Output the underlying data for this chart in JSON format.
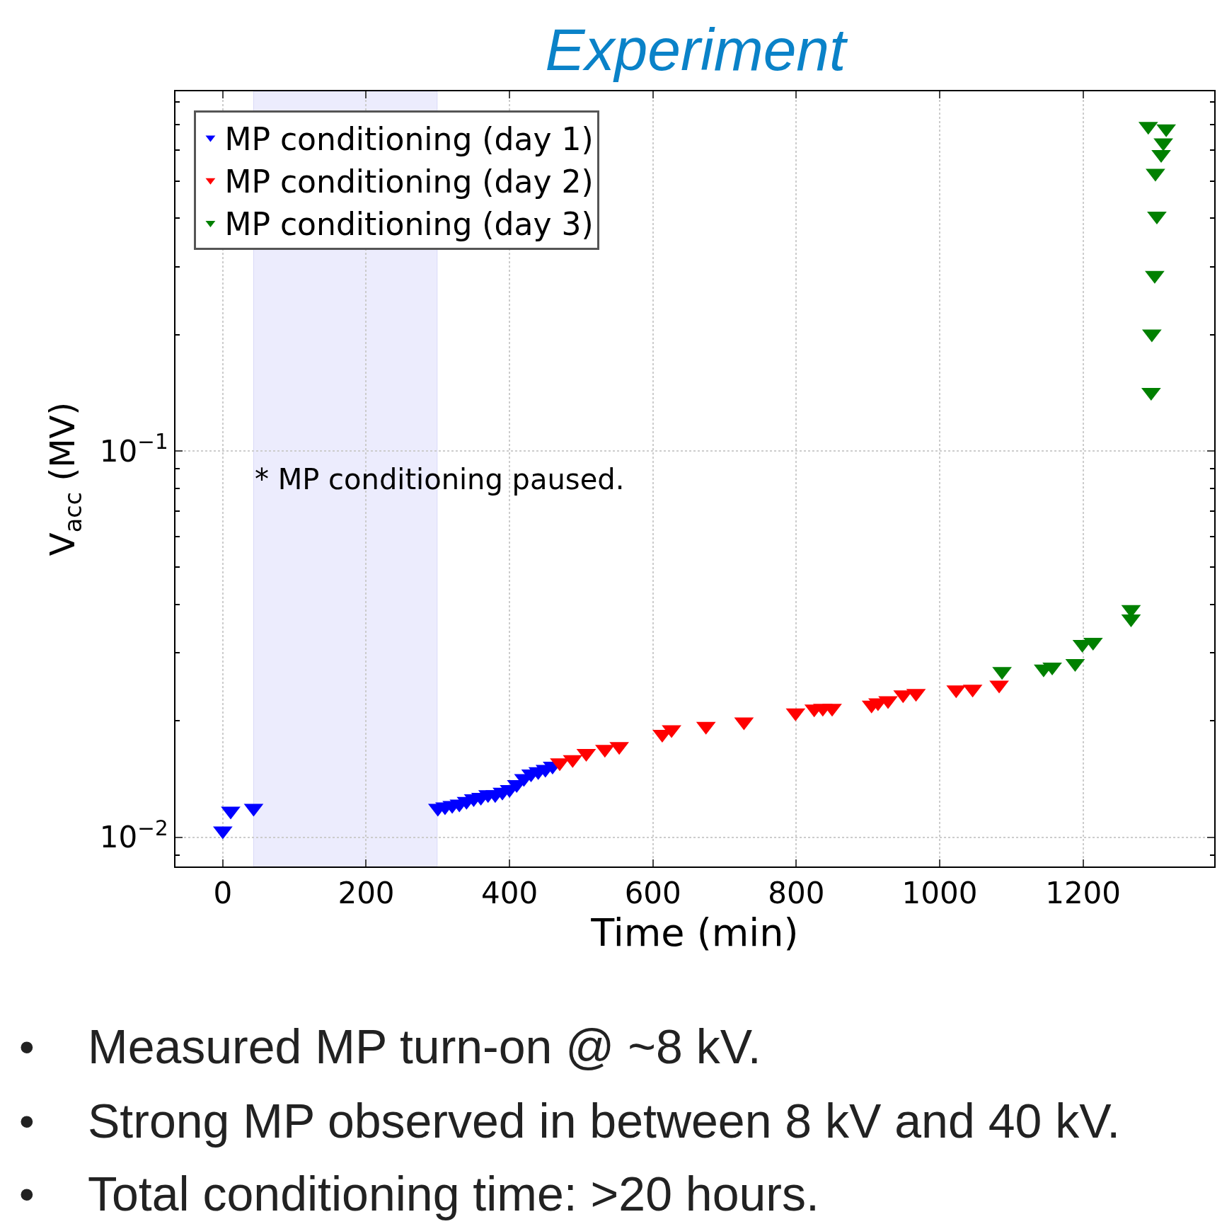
{
  "chart_data": {
    "type": "scatter",
    "title": "Experiment",
    "xlabel": "Time (min)",
    "ylabel": "V$_{acc}$ (MV)",
    "marker": "triangle",
    "log": "y",
    "grid": true,
    "legend": "top left",
    "xlim": [
      -66,
      1383
    ],
    "xticks": [
      0,
      200,
      400,
      600,
      800,
      1000,
      1200
    ],
    "ylim": [
      0.0084,
      0.853
    ],
    "yticks": [
      {
        "value": 0.009,
        "label": null
      },
      {
        "value": 0.01,
        "label": "10$^{−2}$"
      },
      {
        "value": 0.02,
        "label": null
      },
      {
        "value": 0.03,
        "label": null
      },
      {
        "value": 0.04,
        "label": null
      },
      {
        "value": 0.05,
        "label": null
      },
      {
        "value": 0.06,
        "label": null
      },
      {
        "value": 0.07,
        "label": null
      },
      {
        "value": 0.08,
        "label": null
      },
      {
        "value": 0.09,
        "label": null
      },
      {
        "value": 0.1,
        "label": "10$^{−1}$"
      },
      {
        "value": 0.2,
        "label": null
      },
      {
        "value": 0.3,
        "label": null
      },
      {
        "value": 0.4,
        "label": null
      },
      {
        "value": 0.5,
        "label": null
      },
      {
        "value": 0.6,
        "label": null
      },
      {
        "value": 0.7,
        "label": null
      },
      {
        "value": 0.8,
        "label": null
      }
    ],
    "bands": [
      {
        "axis": "x",
        "from": 43,
        "to": 299,
        "label": "* MP conditioning paused.",
        "color": "#ececfd"
      }
    ],
    "series": [
      {
        "name": "MP conditioning (day 1)",
        "color": "#0000ff",
        "x": [
          0,
          11,
          43,
          300,
          310,
          320,
          330,
          340,
          350,
          360,
          370,
          380,
          390,
          400,
          410,
          420,
          430,
          440,
          450,
          460
        ],
        "values": [
          0.0104,
          0.0117,
          0.0119,
          0.0119,
          0.012,
          0.0121,
          0.0122,
          0.0124,
          0.0126,
          0.0127,
          0.0129,
          0.0129,
          0.0131,
          0.0133,
          0.0137,
          0.0142,
          0.0146,
          0.0148,
          0.015,
          0.0153
        ]
      },
      {
        "name": "MP conditioning (day 2)",
        "color": "#ff0000",
        "x": [
          470,
          488,
          507,
          533,
          553,
          613,
          626,
          674,
          727,
          799,
          825,
          837,
          850,
          905,
          914,
          928,
          949,
          967,
          1023,
          1046,
          1083
        ],
        "values": [
          0.0156,
          0.0159,
          0.0165,
          0.0169,
          0.0172,
          0.0185,
          0.019,
          0.0194,
          0.0199,
          0.021,
          0.0215,
          0.0216,
          0.0216,
          0.022,
          0.0223,
          0.0226,
          0.0234,
          0.0236,
          0.0241,
          0.0242,
          0.0248
        ]
      },
      {
        "name": "MP conditioning (day 3)",
        "color": "#008000",
        "x": [
          1087,
          1145,
          1157,
          1189,
          1199,
          1214,
          1267,
          1267,
          1295,
          1296,
          1300,
          1303,
          1301,
          1309,
          1312,
          1316,
          1291
        ],
        "values": [
          0.0269,
          0.0273,
          0.0276,
          0.0282,
          0.0316,
          0.032,
          0.0368,
          0.0389,
          0.142,
          0.201,
          0.285,
          0.406,
          0.524,
          0.586,
          0.628,
          0.683,
          0.693
        ]
      }
    ],
    "annotations": [
      "• Measured MP turn-on @ ~8 kV.",
      "• Strong MP observed in between 8 kV and 40 kV.",
      "• Total conditioning time: >20 hours."
    ]
  }
}
